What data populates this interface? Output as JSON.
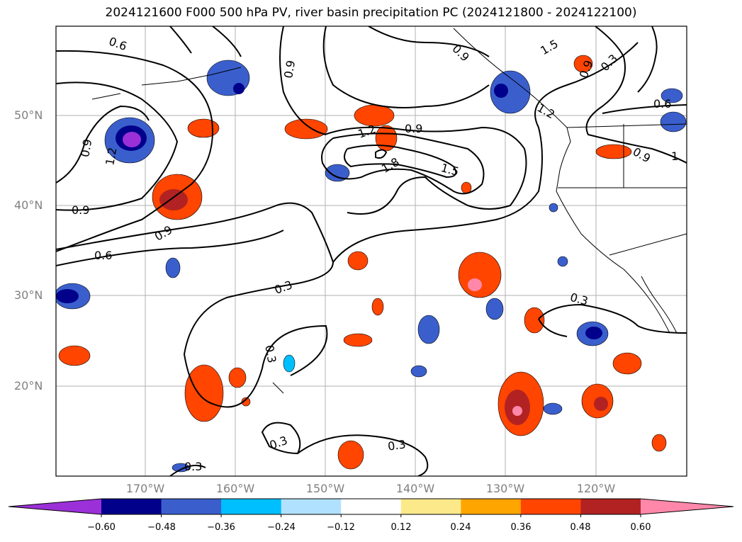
{
  "title": "2024121600 F000 500 hPa PV, river basin precipitation PC (2024121800 - 2024122100)",
  "lat_labels": [
    "50°N",
    "40°N",
    "30°N",
    "20°N"
  ],
  "lon_labels": [
    "170°W",
    "160°W",
    "150°W",
    "140°W",
    "130°W",
    "120°W"
  ],
  "colorbar": {
    "ticks": [
      "−0.60",
      "−0.48",
      "−0.36",
      "−0.24",
      "−0.12",
      "0.12",
      "0.24",
      "0.36",
      "0.48",
      "0.60"
    ],
    "colors": [
      "#9b30d8",
      "#00008b",
      "#3a5fcd",
      "#00bfff",
      "#b0e2ff",
      "#ffffff",
      "#fce98a",
      "#ffa500",
      "#ff4500",
      "#b22222",
      "#ff88aa"
    ]
  },
  "contour_labels": [
    "0.6",
    "0.9",
    "1.2",
    "1.5",
    "1.8",
    "0.3",
    "1"
  ],
  "colors": {
    "positive": "#ff4500",
    "negative": "#3a5fcd",
    "contour": "#000000",
    "grid": "#b0b0b0"
  }
}
